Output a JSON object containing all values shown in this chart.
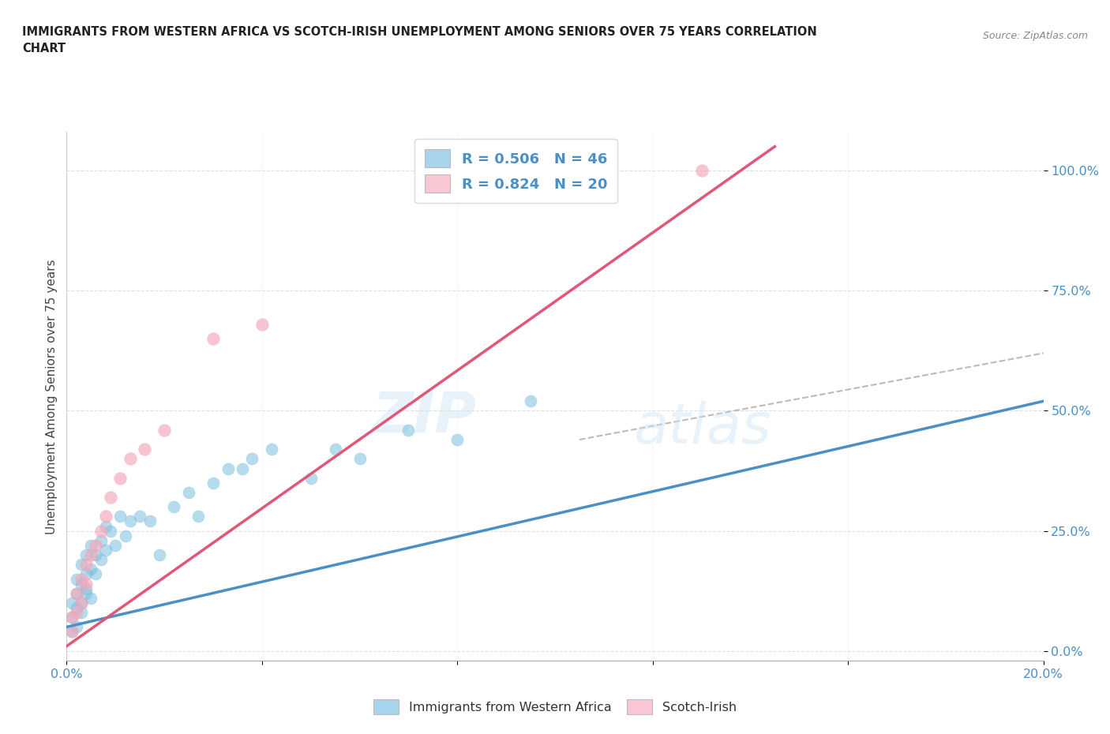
{
  "title_line1": "IMMIGRANTS FROM WESTERN AFRICA VS SCOTCH-IRISH UNEMPLOYMENT AMONG SENIORS OVER 75 YEARS CORRELATION",
  "title_line2": "CHART",
  "source": "Source: ZipAtlas.com",
  "ylabel": "Unemployment Among Seniors over 75 years",
  "y_ticks_labels": [
    "100.0%",
    "75.0%",
    "50.0%",
    "25.0%",
    "0.0%"
  ],
  "y_tick_vals": [
    1.0,
    0.75,
    0.5,
    0.25,
    0.0
  ],
  "x_lim": [
    0.0,
    0.2
  ],
  "y_lim": [
    -0.02,
    1.08
  ],
  "legend_R1": "R = 0.506",
  "legend_N1": "N = 46",
  "legend_R2": "R = 0.824",
  "legend_N2": "N = 20",
  "blue_color": "#7bbfde",
  "pink_color": "#f4a7b9",
  "blue_fill": "#a8d4ed",
  "pink_fill": "#f9c6d4",
  "blue_line_color": "#4a90c4",
  "pink_line_color": "#e05878",
  "dashed_line_color": "#bbbbbb",
  "watermark_zip": "ZIP",
  "watermark_atlas": "atlas",
  "blue_scatter_x": [
    0.001,
    0.001,
    0.001,
    0.002,
    0.002,
    0.002,
    0.002,
    0.003,
    0.003,
    0.003,
    0.003,
    0.004,
    0.004,
    0.004,
    0.004,
    0.005,
    0.005,
    0.005,
    0.006,
    0.006,
    0.007,
    0.007,
    0.008,
    0.008,
    0.009,
    0.01,
    0.011,
    0.012,
    0.013,
    0.015,
    0.017,
    0.019,
    0.022,
    0.025,
    0.027,
    0.03,
    0.033,
    0.036,
    0.038,
    0.042,
    0.05,
    0.055,
    0.06,
    0.07,
    0.08,
    0.095
  ],
  "blue_scatter_y": [
    0.04,
    0.07,
    0.1,
    0.05,
    0.09,
    0.12,
    0.15,
    0.1,
    0.14,
    0.18,
    0.08,
    0.12,
    0.16,
    0.2,
    0.13,
    0.17,
    0.11,
    0.22,
    0.16,
    0.2,
    0.19,
    0.23,
    0.21,
    0.26,
    0.25,
    0.22,
    0.28,
    0.24,
    0.27,
    0.28,
    0.27,
    0.2,
    0.3,
    0.33,
    0.28,
    0.35,
    0.38,
    0.38,
    0.4,
    0.42,
    0.36,
    0.42,
    0.4,
    0.46,
    0.44,
    0.52
  ],
  "pink_scatter_x": [
    0.001,
    0.001,
    0.002,
    0.002,
    0.003,
    0.003,
    0.004,
    0.004,
    0.005,
    0.006,
    0.007,
    0.008,
    0.009,
    0.011,
    0.013,
    0.016,
    0.02,
    0.03,
    0.04,
    0.13
  ],
  "pink_scatter_y": [
    0.04,
    0.07,
    0.08,
    0.12,
    0.1,
    0.15,
    0.14,
    0.18,
    0.2,
    0.22,
    0.25,
    0.28,
    0.32,
    0.36,
    0.4,
    0.42,
    0.46,
    0.65,
    0.68,
    1.0
  ],
  "blue_line_x0": 0.0,
  "blue_line_x1": 0.2,
  "blue_line_y0": 0.05,
  "blue_line_y1": 0.52,
  "pink_line_x0": 0.0,
  "pink_line_x1": 0.145,
  "pink_line_y0": 0.01,
  "pink_line_y1": 1.05,
  "dashed_line_x0": 0.105,
  "dashed_line_x1": 0.2,
  "dashed_line_y0": 0.44,
  "dashed_line_y1": 0.62,
  "x_minor_ticks": [
    0.0,
    0.04,
    0.08,
    0.12,
    0.16,
    0.2
  ],
  "bottom_legend_labels": [
    "Immigrants from Western Africa",
    "Scotch-Irish"
  ]
}
